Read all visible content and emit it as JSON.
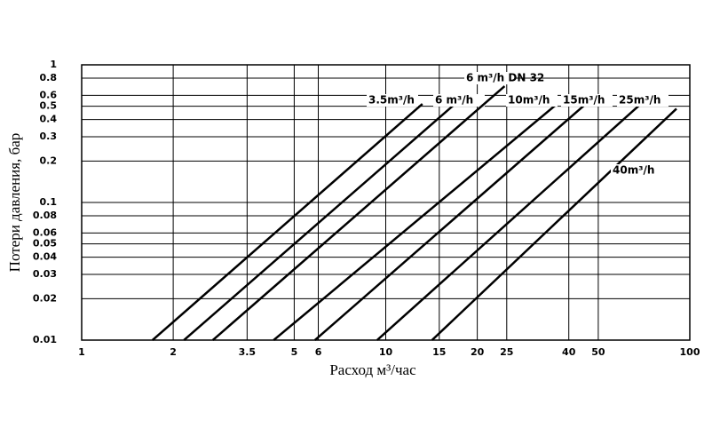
{
  "chart_data": {
    "type": "line",
    "xlabel": "Расход м³/час",
    "ylabel": "Потери давления, бар",
    "xscale": "log",
    "yscale": "log",
    "grid": true,
    "color": "#000000",
    "xlim": [
      1,
      100
    ],
    "ylim": [
      0.01,
      1
    ],
    "xticks": [
      1,
      2,
      3.5,
      5,
      6,
      10,
      15,
      20,
      25,
      40,
      50,
      100
    ],
    "yticks": [
      0.01,
      0.02,
      0.03,
      0.04,
      0.05,
      0.06,
      0.08,
      0.1,
      0.2,
      0.3,
      0.4,
      0.5,
      0.6,
      0.8,
      1
    ],
    "series": [
      {
        "name": "3.5m³/h",
        "color": "#000000",
        "x": [
          1.71,
          13.2
        ],
        "values": [
          0.01,
          0.52
        ]
      },
      {
        "name": "6 m³/h",
        "color": "#000000",
        "x": [
          2.17,
          16.9
        ],
        "values": [
          0.01,
          0.52
        ]
      },
      {
        "name": "6 m³/h DN 32",
        "color": "#000000",
        "x": [
          2.7,
          24.6
        ],
        "values": [
          0.01,
          0.7
        ]
      },
      {
        "name": "10m³/h",
        "color": "#000000",
        "x": [
          4.28,
          36.6
        ],
        "values": [
          0.01,
          0.52
        ]
      },
      {
        "name": "15m³/h",
        "color": "#000000",
        "x": [
          5.85,
          45.5
        ],
        "values": [
          0.01,
          0.52
        ]
      },
      {
        "name": "25m³/h",
        "color": "#000000",
        "x": [
          9.37,
          69
        ],
        "values": [
          0.01,
          0.52
        ]
      },
      {
        "name": "40m³/h",
        "color": "#000000",
        "x": [
          14.2,
          90.4
        ],
        "values": [
          0.01,
          0.48
        ]
      }
    ]
  }
}
